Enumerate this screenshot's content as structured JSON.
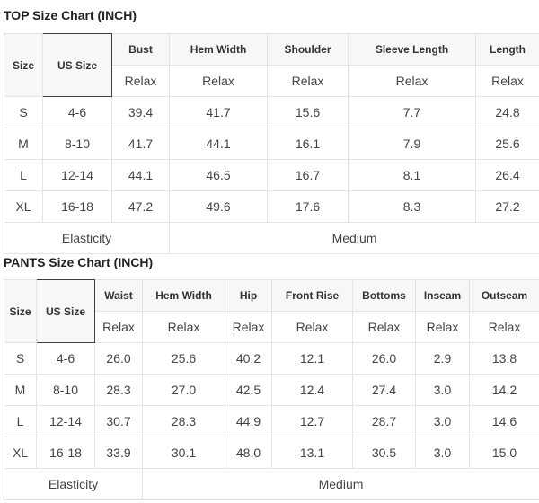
{
  "top": {
    "title": "TOP Size Chart (INCH)",
    "size_label": "Size",
    "us_size_label": "US Size",
    "columns": [
      "Bust",
      "Hem Width",
      "Shoulder",
      "Sleeve Length",
      "Length"
    ],
    "fit": [
      "Relax",
      "Relax",
      "Relax",
      "Relax",
      "Relax"
    ],
    "rows": [
      {
        "size": "S",
        "us": "4-6",
        "values": [
          "39.4",
          "41.7",
          "15.6",
          "7.7",
          "24.8"
        ]
      },
      {
        "size": "M",
        "us": "8-10",
        "values": [
          "41.7",
          "44.1",
          "16.1",
          "7.9",
          "25.6"
        ]
      },
      {
        "size": "L",
        "us": "12-14",
        "values": [
          "44.1",
          "46.5",
          "16.7",
          "8.1",
          "26.4"
        ]
      },
      {
        "size": "XL",
        "us": "16-18",
        "values": [
          "47.2",
          "49.6",
          "17.6",
          "8.3",
          "27.2"
        ]
      }
    ],
    "elasticity_label": "Elasticity",
    "elasticity_value": "Medium"
  },
  "pants": {
    "title": "PANTS Size Chart (INCH)",
    "size_label": "Size",
    "us_size_label": "US Size",
    "columns": [
      "Waist",
      "Hem Width",
      "Hip",
      "Front Rise",
      "Bottoms",
      "Inseam",
      "Outseam"
    ],
    "fit": [
      "Relax",
      "Relax",
      "Relax",
      "Relax",
      "Relax",
      "Relax",
      "Relax"
    ],
    "rows": [
      {
        "size": "S",
        "us": "4-6",
        "values": [
          "26.0",
          "25.6",
          "40.2",
          "12.1",
          "26.0",
          "2.9",
          "13.8"
        ]
      },
      {
        "size": "M",
        "us": "8-10",
        "values": [
          "28.3",
          "27.0",
          "42.5",
          "12.4",
          "27.4",
          "3.0",
          "14.2"
        ]
      },
      {
        "size": "L",
        "us": "12-14",
        "values": [
          "30.7",
          "28.3",
          "44.9",
          "12.7",
          "28.7",
          "3.0",
          "14.6"
        ]
      },
      {
        "size": "XL",
        "us": "16-18",
        "values": [
          "33.9",
          "30.1",
          "48.0",
          "13.1",
          "30.5",
          "3.0",
          "15.0"
        ]
      }
    ],
    "elasticity_label": "Elasticity",
    "elasticity_value": "Medium"
  }
}
